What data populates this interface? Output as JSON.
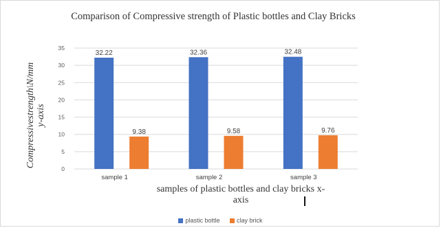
{
  "chart_data": {
    "type": "bar",
    "title": "Comparison of Compressive strength of Plastic bottles and Clay Bricks",
    "xlabel": "samples of plastic bottles and clay bricks x-axis",
    "ylabel": "Compressivestrength\\N/mm\ny-axis",
    "categories": [
      "sample 1",
      "sample 2",
      "sample 3"
    ],
    "series": [
      {
        "name": "plastic bottle",
        "values": [
          32.22,
          32.36,
          32.48
        ],
        "color": "#4472C4"
      },
      {
        "name": "clay brick",
        "values": [
          9.38,
          9.58,
          9.76
        ],
        "color": "#ED7D31"
      }
    ],
    "ylim": [
      0,
      35
    ],
    "yticks": [
      0,
      5,
      10,
      15,
      20,
      25,
      30,
      35
    ],
    "grid": true,
    "legend_position": "bottom",
    "data_labels": true
  }
}
